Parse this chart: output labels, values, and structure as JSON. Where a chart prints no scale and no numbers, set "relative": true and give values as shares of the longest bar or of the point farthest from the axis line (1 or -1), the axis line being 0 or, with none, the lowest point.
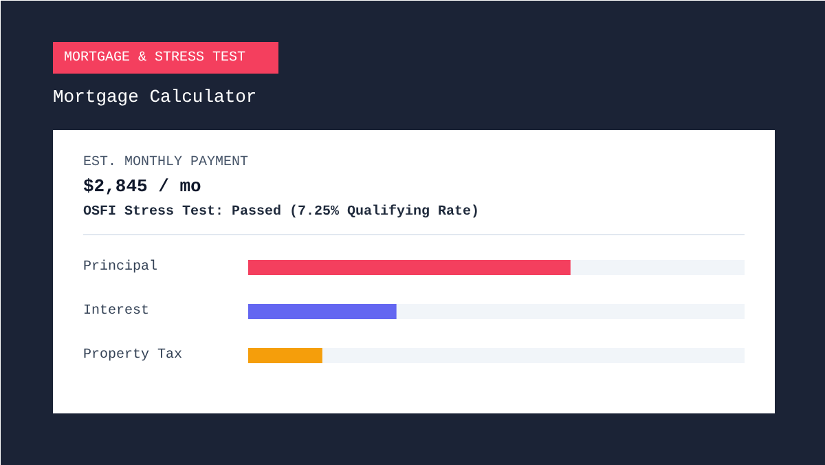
{
  "chart_data": {
    "type": "bar",
    "orientation": "horizontal",
    "relative": true,
    "title": "Mortgage Calculator",
    "annotations": [
      "MORTGAGE & STRESS TEST",
      "EST. MONTHLY PAYMENT",
      "$2,845 / mo",
      "OSFI Stress Test: Passed (7.25% Qualifying Rate)"
    ],
    "categories": [
      "Principal",
      "Interest",
      "Property Tax"
    ],
    "values": [
      1,
      0.46,
      0.23
    ],
    "colors": [
      "#f43f5e",
      "#6366f1",
      "#f59e0b"
    ]
  }
}
